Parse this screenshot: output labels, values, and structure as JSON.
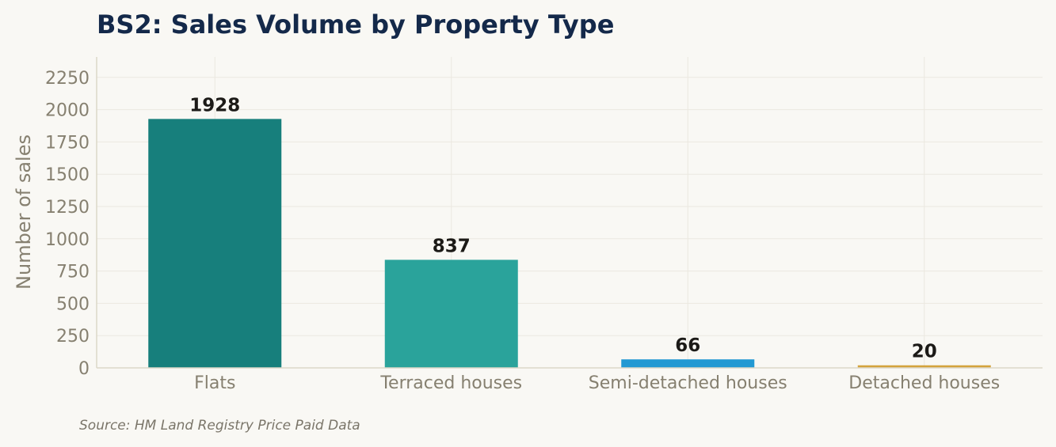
{
  "chart_data": {
    "type": "bar",
    "title": "BS2: Sales Volume by Property Type",
    "categories": [
      "Flats",
      "Terraced houses",
      "Semi-detached houses",
      "Detached houses"
    ],
    "values": [
      1928,
      837,
      66,
      20
    ],
    "colors": [
      "#177f7c",
      "#2aa39b",
      "#2299d3",
      "#d4a33c"
    ],
    "xlabel": "",
    "ylabel": "Number of sales",
    "ylim": [
      0,
      2400
    ],
    "yticks": [
      0,
      250,
      500,
      750,
      1000,
      1250,
      1500,
      1750,
      2000,
      2250
    ],
    "grid": true,
    "source": "Source: HM Land Registry Price Paid Data"
  }
}
